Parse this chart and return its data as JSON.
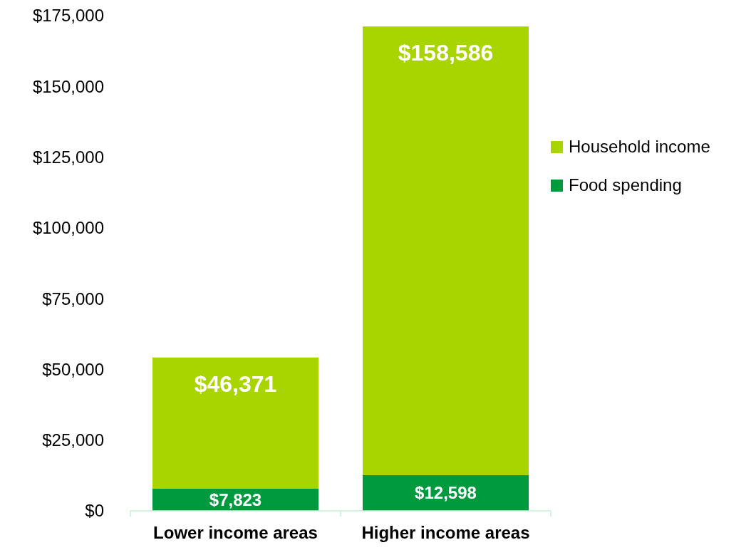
{
  "chart_data": {
    "type": "bar",
    "stacked": true,
    "categories": [
      "Lower income areas",
      "Higher income areas"
    ],
    "series": [
      {
        "name": "Food spending",
        "color": "#009a3e",
        "values": [
          7823,
          12598
        ],
        "value_labels": [
          "$7,823",
          "$12,598"
        ]
      },
      {
        "name": "Household income",
        "color": "#a8d400",
        "values": [
          46371,
          158586
        ],
        "value_labels": [
          "$46,371",
          "$158,586"
        ]
      }
    ],
    "ylim": [
      0,
      175000
    ],
    "yticks": [
      {
        "value": 0,
        "label": "$0"
      },
      {
        "value": 25000,
        "label": "$25,000"
      },
      {
        "value": 50000,
        "label": "$50,000"
      },
      {
        "value": 75000,
        "label": "$75,000"
      },
      {
        "value": 100000,
        "label": "$100,000"
      },
      {
        "value": 125000,
        "label": "$125,000"
      },
      {
        "value": 150000,
        "label": "$150,000"
      },
      {
        "value": 175000,
        "label": "$175,000"
      }
    ],
    "legend": "right",
    "grid": false
  }
}
